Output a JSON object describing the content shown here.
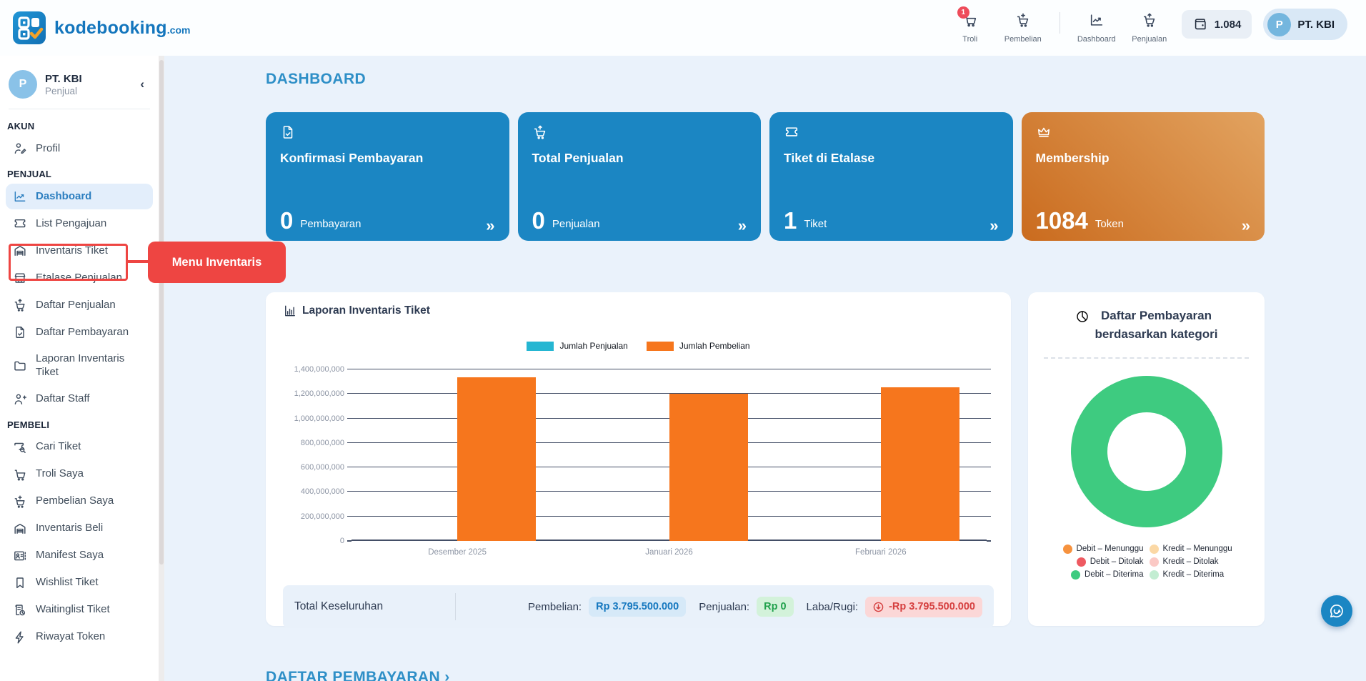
{
  "header": {
    "brand": {
      "name": "kodebooking",
      "tld": ".com"
    },
    "nav_left": [
      {
        "label": "Troli",
        "icon": "cart-icon",
        "badge": "1"
      },
      {
        "label": "Pembelian",
        "icon": "cart-plus-icon"
      }
    ],
    "nav_right": [
      {
        "label": "Dashboard",
        "icon": "chart-line-icon"
      },
      {
        "label": "Penjualan",
        "icon": "cart-up-icon"
      }
    ],
    "wallet": {
      "value": "1.084"
    },
    "user": {
      "initial": "P",
      "name": "PT. KBI"
    }
  },
  "sidebar": {
    "profile": {
      "initial": "P",
      "name": "PT. KBI",
      "role": "Penjual"
    },
    "sections": [
      {
        "title": "AKUN",
        "items": [
          {
            "label": "Profil",
            "icon": "user-edit-icon"
          }
        ]
      },
      {
        "title": "PENJUAL",
        "items": [
          {
            "label": "Dashboard",
            "icon": "dashboard-icon",
            "active": true
          },
          {
            "label": "List Pengajuan",
            "icon": "ticket-icon"
          },
          {
            "label": "Inventaris Tiket",
            "icon": "warehouse-icon",
            "highlighted": true
          },
          {
            "label": "Etalase Penjualan",
            "icon": "storefront-icon"
          },
          {
            "label": "Daftar Penjualan",
            "icon": "cart-up-icon"
          },
          {
            "label": "Daftar Pembayaran",
            "icon": "document-check-icon"
          },
          {
            "label": "Laporan Inventaris Tiket",
            "icon": "folder-icon"
          },
          {
            "label": "Daftar Staff",
            "icon": "user-plus-icon"
          }
        ]
      },
      {
        "title": "PEMBELI",
        "items": [
          {
            "label": "Cari Tiket",
            "icon": "ticket-search-icon"
          },
          {
            "label": "Troli Saya",
            "icon": "cart-icon"
          },
          {
            "label": "Pembelian Saya",
            "icon": "cart-plus-icon"
          },
          {
            "label": "Inventaris Beli",
            "icon": "warehouse-icon"
          },
          {
            "label": "Manifest Saya",
            "icon": "id-card-icon"
          },
          {
            "label": "Wishlist Tiket",
            "icon": "bookmark-icon"
          },
          {
            "label": "Waitinglist Tiket",
            "icon": "list-clock-icon"
          },
          {
            "label": "Riwayat Token",
            "icon": "bolt-icon"
          }
        ]
      }
    ]
  },
  "annotation": {
    "tooltip": "Menu Inventaris",
    "color": "#ee4542"
  },
  "main": {
    "title": "DASHBOARD",
    "cards": [
      {
        "icon": "document-check-icon",
        "title": "Konfirmasi Pembayaran",
        "value": "0",
        "unit": "Pembayaran",
        "theme": "blue",
        "more": "»"
      },
      {
        "icon": "cart-up-icon",
        "title": "Total Penjualan",
        "value": "0",
        "unit": "Penjualan",
        "theme": "blue",
        "more": "»"
      },
      {
        "icon": "ticket-icon",
        "title": "Tiket di Etalase",
        "value": "1",
        "unit": "Tiket",
        "theme": "blue",
        "more": "»"
      },
      {
        "icon": "crown-icon",
        "title": "Membership",
        "value": "1084",
        "unit": "Token",
        "theme": "orange",
        "more": "»"
      }
    ],
    "totals": {
      "label": "Total Keseluruhan",
      "pembelian_label": "Pembelian:",
      "pembelian_value": "Rp 3.795.500.000",
      "penjualan_label": "Penjualan:",
      "penjualan_value": "Rp 0",
      "laba_label": "Laba/Rugi:",
      "laba_value": "-Rp 3.795.500.000"
    },
    "bottom_title": "DAFTAR PEMBAYARAN ›"
  },
  "chart_data": [
    {
      "type": "bar",
      "title": "Laporan Inventaris Tiket",
      "categories": [
        "Desember 2025",
        "Januari 2026",
        "Februari 2026"
      ],
      "series": [
        {
          "name": "Jumlah Penjualan",
          "color": "#25b6d2",
          "values": [
            0,
            0,
            0
          ]
        },
        {
          "name": "Jumlah Pembelian",
          "color": "#f6761d",
          "values": [
            1337000000,
            1204500000,
            1254000000
          ]
        }
      ],
      "ylim": [
        0,
        1400000000
      ],
      "ytick_step": 200000000,
      "legend_position": "top",
      "grid": true,
      "total_pembelian": 3795500000,
      "total_penjualan": 0,
      "laba_rugi": -3795500000
    },
    {
      "type": "pie",
      "donut": true,
      "title": "Daftar Pembayaran berdasarkan kategori",
      "title_line1": "Daftar Pembayaran",
      "title_line2": "berdasarkan kategori",
      "labels": [
        "Debit – Menunggu",
        "Debit – Ditolak",
        "Debit – Diterima",
        "Kredit – Menunggu",
        "Kredit – Ditolak",
        "Kredit – Diterima"
      ],
      "values": [
        0,
        0,
        100,
        0,
        0,
        0
      ],
      "colors": [
        "#f6923e",
        "#ee5a61",
        "#3ecb80",
        "#fbd8a5",
        "#fbc9c5",
        "#c3edd2"
      ],
      "legend_order": [
        "Debit – Menunggu",
        "Kredit – Menunggu",
        "Debit – Ditolak",
        "Kredit – Ditolak",
        "Debit – Diterima",
        "Kredit – Diterima"
      ],
      "legend_colors": [
        "#f6923e",
        "#fbd8a5",
        "#ee5a61",
        "#fbc9c5",
        "#3ecb80",
        "#c3edd2"
      ]
    }
  ]
}
